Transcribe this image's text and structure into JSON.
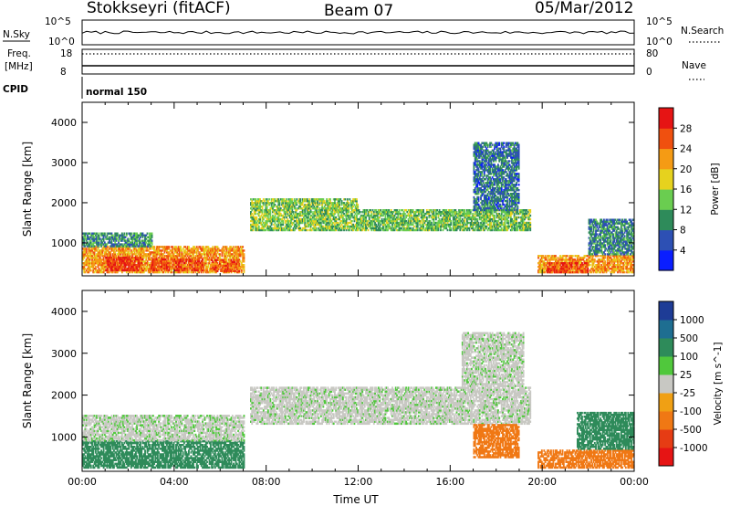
{
  "header": {
    "radar": "Stokkseyri (fitACF)",
    "beam": "Beam 07",
    "date": "05/Mar/2012"
  },
  "mini_panels": {
    "nsky_label": "N.Sky",
    "nsky_ticks": [
      "10^5",
      "10^0"
    ],
    "nsearch_label": "N.Search",
    "nsearch_ticks": [
      "10^5",
      "10^0"
    ],
    "freq_label": "Freq.",
    "freq_unit": "[MHz]",
    "freq_ticks": [
      "18",
      "8"
    ],
    "nave_label": "Nave",
    "nave_ticks": [
      "80",
      "0"
    ],
    "cpid_label": "CPID",
    "cpid_value": "normal 150"
  },
  "chart_data": [
    {
      "type": "heatmap",
      "name": "power-panel",
      "ylabel": "Slant Range [km]",
      "xlim": [
        0,
        24
      ],
      "ylim": [
        180,
        4500
      ],
      "yticks": [
        "1000",
        "2000",
        "3000",
        "4000"
      ],
      "ytick_values": [
        1000,
        2000,
        3000,
        4000
      ],
      "colorbar": {
        "label": "Power [dB]",
        "range": [
          0,
          32
        ],
        "ticks": [
          "4",
          "8",
          "12",
          "16",
          "20",
          "24",
          "28"
        ],
        "colors": [
          "#0a1eff",
          "#2d50b4",
          "#2e8b5a",
          "#6acd50",
          "#e6d21e",
          "#f59b14",
          "#f0500f",
          "#e61414"
        ]
      },
      "regions": [
        {
          "t": [
            0.0,
            7.0
          ],
          "r": [
            250,
            900
          ],
          "v": 22
        },
        {
          "t": [
            1.0,
            2.6
          ],
          "r": [
            300,
            650
          ],
          "v": 28
        },
        {
          "t": [
            3.0,
            5.2
          ],
          "r": [
            300,
            600
          ],
          "v": 27
        },
        {
          "t": [
            0.0,
            3.0
          ],
          "r": [
            900,
            1250
          ],
          "v": 10
        },
        {
          "t": [
            5.6,
            6.8
          ],
          "r": [
            280,
            560
          ],
          "v": 26
        },
        {
          "t": [
            7.3,
            12.0
          ],
          "r": [
            1300,
            2100
          ],
          "v": 14
        },
        {
          "t": [
            12.0,
            19.5
          ],
          "r": [
            1300,
            1800
          ],
          "v": 13
        },
        {
          "t": [
            17.0,
            19.0
          ],
          "r": [
            1800,
            3500
          ],
          "v": 8
        },
        {
          "t": [
            19.8,
            24.0
          ],
          "r": [
            250,
            700
          ],
          "v": 22
        },
        {
          "t": [
            20.2,
            22.0
          ],
          "r": [
            250,
            520
          ],
          "v": 27
        },
        {
          "t": [
            22.0,
            24.0
          ],
          "r": [
            700,
            1600
          ],
          "v": 9
        }
      ]
    },
    {
      "type": "heatmap",
      "name": "velocity-panel",
      "ylabel": "Slant Range [km]",
      "xlabel": "Time UT",
      "xlim": [
        0,
        24
      ],
      "ylim": [
        180,
        4500
      ],
      "xticks": [
        "00:00",
        "04:00",
        "08:00",
        "12:00",
        "16:00",
        "20:00",
        "00:00"
      ],
      "xtick_values": [
        0,
        4,
        8,
        12,
        16,
        20,
        24
      ],
      "yticks": [
        "1000",
        "2000",
        "3000",
        "4000"
      ],
      "ytick_values": [
        1000,
        2000,
        3000,
        4000
      ],
      "colorbar": {
        "label": "Velocity [m s^-1]",
        "ticks": [
          "1000",
          "500",
          "100",
          "25",
          "-25",
          "-100",
          "-500",
          "-1000"
        ],
        "colors": [
          "#1e3c96",
          "#1e6e91",
          "#2e8b5a",
          "#50c83c",
          "#c8c8c3",
          "#f0a014",
          "#f07814",
          "#e63c14",
          "#e61414"
        ]
      },
      "regions": [
        {
          "t": [
            0.0,
            7.0
          ],
          "r": [
            250,
            900
          ],
          "v": 150
        },
        {
          "t": [
            0.0,
            7.0
          ],
          "r": [
            900,
            1500
          ],
          "v": 10
        },
        {
          "t": [
            7.3,
            19.5
          ],
          "r": [
            1300,
            2200
          ],
          "v": 5
        },
        {
          "t": [
            16.5,
            19.2
          ],
          "r": [
            2200,
            3500
          ],
          "v": 5
        },
        {
          "t": [
            17.0,
            19.0
          ],
          "r": [
            500,
            1300
          ],
          "v": -300
        },
        {
          "t": [
            19.8,
            24.0
          ],
          "r": [
            250,
            700
          ],
          "v": -200
        },
        {
          "t": [
            21.5,
            24.0
          ],
          "r": [
            700,
            1600
          ],
          "v": 200
        }
      ]
    }
  ]
}
